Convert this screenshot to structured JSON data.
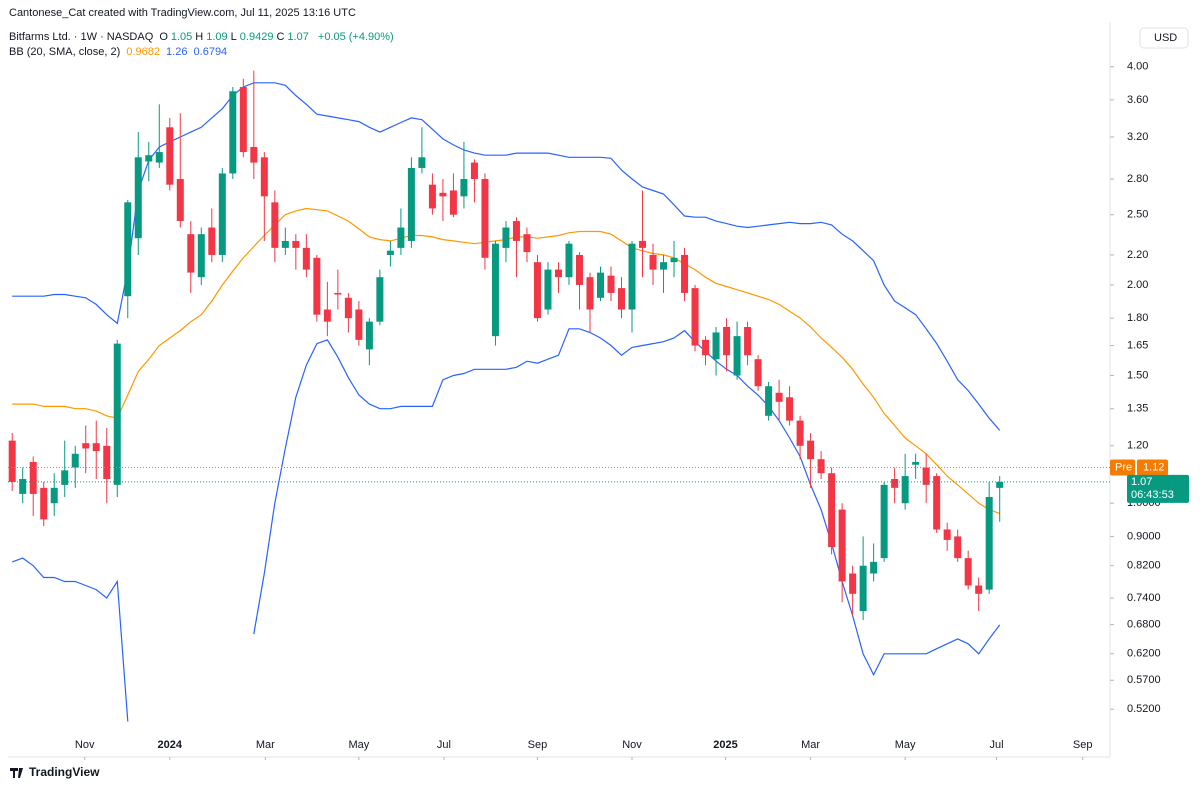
{
  "attribution": "Cantonese_Cat created with TradingView.com, Jul 11, 2025 13:16 UTC",
  "brand": "TradingView",
  "currency": "USD",
  "chart_data": {
    "type": "candlestick",
    "title": "Bitfarms Ltd. · 1W · NASDAQ",
    "ohlc_labels": [
      "O",
      "H",
      "L",
      "C"
    ],
    "change": "+0.05 (+4.90%)",
    "indicator": "BB (20, SMA, close, 2)",
    "log_scale": true,
    "grid": false,
    "up_color": "#089981",
    "down_color": "#f23645",
    "open": [
      1.22,
      1.03,
      1.14,
      1.05,
      1.0,
      1.06,
      1.12,
      1.21,
      1.21,
      1.2,
      1.06,
      1.93,
      2.32,
      2.96,
      2.95,
      3.3,
      2.8,
      2.35,
      2.05,
      2.4,
      2.2,
      2.85,
      3.75,
      3.1,
      3.0,
      2.6,
      2.25,
      2.3,
      2.25,
      2.18,
      1.85,
      1.95,
      1.92,
      1.85,
      1.63,
      1.78,
      2.2,
      2.25,
      2.3,
      2.9,
      2.75,
      2.68,
      2.7,
      2.65,
      2.95,
      2.8,
      1.7,
      2.25,
      2.45,
      2.35,
      2.15,
      1.85,
      2.1,
      2.05,
      2.2,
      2.05,
      1.92,
      2.06,
      1.98,
      1.85,
      2.3,
      2.2,
      2.1,
      2.15,
      2.2,
      1.98,
      1.68,
      1.58,
      1.75,
      1.5,
      1.75,
      1.58,
      1.32,
      1.42,
      1.4,
      1.3,
      1.22,
      1.15,
      1.1,
      0.98,
      0.8,
      0.71,
      0.8,
      0.84,
      1.08,
      1.0,
      1.13,
      1.12,
      1.09,
      0.92,
      0.9,
      0.84,
      0.77,
      0.76,
      1.05
    ],
    "high": [
      1.25,
      1.12,
      1.16,
      1.07,
      1.1,
      1.22,
      1.2,
      1.28,
      1.3,
      1.27,
      1.68,
      2.62,
      3.25,
      3.15,
      3.55,
      3.4,
      3.45,
      2.45,
      2.4,
      2.55,
      2.9,
      3.75,
      3.85,
      3.95,
      3.05,
      2.7,
      2.4,
      2.35,
      2.35,
      2.2,
      2.02,
      2.1,
      1.95,
      1.9,
      1.8,
      2.1,
      2.3,
      2.55,
      3.0,
      3.3,
      2.85,
      2.8,
      2.85,
      3.15,
      2.98,
      2.85,
      2.3,
      2.45,
      2.48,
      2.4,
      2.2,
      2.15,
      2.15,
      2.3,
      2.22,
      2.08,
      2.12,
      2.12,
      2.05,
      2.3,
      2.7,
      2.28,
      2.2,
      2.3,
      2.25,
      2.0,
      1.7,
      1.75,
      1.8,
      1.78,
      1.78,
      1.6,
      1.47,
      1.48,
      1.45,
      1.32,
      1.25,
      1.18,
      1.12,
      1.0,
      0.82,
      0.9,
      0.88,
      1.07,
      1.12,
      1.17,
      1.17,
      1.17,
      1.1,
      0.94,
      0.92,
      0.86,
      0.79,
      1.07,
      1.09
    ],
    "low": [
      1.04,
      1.0,
      0.96,
      0.93,
      0.96,
      1.02,
      1.05,
      1.1,
      1.08,
      1.0,
      1.02,
      1.8,
      2.2,
      2.78,
      2.9,
      2.7,
      2.4,
      1.95,
      2.0,
      2.15,
      2.15,
      2.8,
      3.0,
      2.8,
      2.3,
      2.15,
      2.2,
      2.1,
      2.05,
      1.78,
      1.7,
      1.85,
      1.72,
      1.65,
      1.55,
      1.76,
      2.12,
      2.2,
      2.25,
      2.85,
      2.5,
      2.45,
      2.48,
      2.55,
      2.6,
      2.1,
      1.65,
      2.15,
      2.05,
      2.15,
      1.78,
      1.82,
      1.95,
      2.0,
      1.85,
      1.72,
      1.9,
      1.9,
      1.8,
      1.72,
      2.05,
      2.0,
      1.95,
      2.05,
      1.9,
      1.62,
      1.55,
      1.5,
      1.52,
      1.48,
      1.55,
      1.43,
      1.3,
      1.3,
      1.28,
      1.15,
      1.05,
      1.08,
      0.85,
      0.73,
      0.7,
      0.69,
      0.78,
      0.83,
      1.0,
      0.98,
      1.08,
      1.0,
      0.91,
      0.86,
      0.83,
      0.76,
      0.71,
      0.75,
      0.9429
    ],
    "close": [
      1.07,
      1.08,
      1.03,
      0.95,
      1.05,
      1.11,
      1.17,
      1.19,
      1.18,
      1.08,
      1.66,
      2.6,
      3.0,
      3.02,
      3.05,
      2.75,
      2.45,
      2.08,
      2.35,
      2.2,
      2.85,
      3.7,
      3.05,
      2.95,
      2.65,
      2.25,
      2.3,
      2.25,
      2.1,
      1.82,
      1.78,
      1.94,
      1.8,
      1.68,
      1.78,
      2.05,
      2.23,
      2.4,
      2.9,
      3.0,
      2.55,
      2.65,
      2.5,
      2.8,
      2.8,
      2.18,
      2.28,
      2.4,
      2.3,
      2.22,
      1.8,
      2.1,
      2.05,
      2.28,
      2.0,
      1.85,
      2.08,
      1.95,
      1.85,
      2.28,
      2.25,
      2.1,
      2.15,
      2.18,
      1.95,
      1.65,
      1.6,
      1.72,
      1.6,
      1.7,
      1.6,
      1.45,
      1.45,
      1.38,
      1.3,
      1.2,
      1.15,
      1.1,
      0.87,
      0.78,
      0.75,
      0.82,
      0.83,
      1.06,
      1.05,
      1.09,
      1.14,
      1.06,
      0.92,
      0.89,
      0.84,
      0.77,
      0.75,
      1.02,
      1.07
    ],
    "series": [
      {
        "color": "#ff9800",
        "values": [
          1.37,
          1.37,
          1.37,
          1.36,
          1.36,
          1.36,
          1.35,
          1.35,
          1.34,
          1.32,
          1.31,
          1.41,
          1.52,
          1.58,
          1.65,
          1.69,
          1.73,
          1.78,
          1.82,
          1.9,
          2.0,
          2.09,
          2.18,
          2.26,
          2.34,
          2.42,
          2.5,
          2.53,
          2.55,
          2.54,
          2.53,
          2.49,
          2.45,
          2.39,
          2.33,
          2.31,
          2.3,
          2.32,
          2.34,
          2.34,
          2.33,
          2.31,
          2.3,
          2.29,
          2.28,
          2.29,
          2.3,
          2.31,
          2.33,
          2.33,
          2.32,
          2.33,
          2.34,
          2.36,
          2.37,
          2.37,
          2.37,
          2.35,
          2.3,
          2.25,
          2.23,
          2.21,
          2.2,
          2.18,
          2.14,
          2.1,
          2.05,
          2.01,
          1.99,
          1.97,
          1.95,
          1.93,
          1.91,
          1.88,
          1.84,
          1.8,
          1.75,
          1.69,
          1.64,
          1.59,
          1.53,
          1.46,
          1.4,
          1.33,
          1.28,
          1.23,
          1.2,
          1.17,
          1.13,
          1.09,
          1.06,
          1.03,
          1.0,
          0.98,
          0.9682
        ]
      },
      {
        "color": "#2962ff",
        "values": [
          1.93,
          1.93,
          1.93,
          1.93,
          1.94,
          1.94,
          1.93,
          1.92,
          1.88,
          1.82,
          1.77,
          2.1,
          2.7,
          2.97,
          3.1,
          3.15,
          3.2,
          3.25,
          3.3,
          3.4,
          3.5,
          3.65,
          3.75,
          3.8,
          3.8,
          3.8,
          3.77,
          3.65,
          3.55,
          3.44,
          3.42,
          3.4,
          3.38,
          3.36,
          3.3,
          3.25,
          3.3,
          3.35,
          3.4,
          3.38,
          3.28,
          3.18,
          3.12,
          3.07,
          3.04,
          3.02,
          3.02,
          3.02,
          3.04,
          3.04,
          3.04,
          3.04,
          3.02,
          3.0,
          3.0,
          3.0,
          3.0,
          2.99,
          2.88,
          2.8,
          2.73,
          2.7,
          2.67,
          2.58,
          2.49,
          2.48,
          2.48,
          2.45,
          2.43,
          2.41,
          2.4,
          2.41,
          2.42,
          2.43,
          2.44,
          2.43,
          2.43,
          2.44,
          2.42,
          2.35,
          2.3,
          2.23,
          2.16,
          2.0,
          1.9,
          1.86,
          1.82,
          1.74,
          1.66,
          1.57,
          1.48,
          1.43,
          1.37,
          1.31,
          1.26
        ]
      },
      {
        "color": "#2962ff",
        "values": [
          0.83,
          0.84,
          0.82,
          0.79,
          0.79,
          0.78,
          0.78,
          0.77,
          0.76,
          0.74,
          0.78,
          0.5,
          null,
          null,
          null,
          null,
          null,
          null,
          null,
          null,
          null,
          null,
          null,
          0.66,
          0.8,
          1.0,
          1.19,
          1.4,
          1.55,
          1.66,
          1.68,
          1.59,
          1.49,
          1.41,
          1.37,
          1.35,
          1.35,
          1.36,
          1.36,
          1.36,
          1.36,
          1.48,
          1.5,
          1.51,
          1.53,
          1.53,
          1.53,
          1.53,
          1.54,
          1.57,
          1.56,
          1.58,
          1.6,
          1.74,
          1.74,
          1.72,
          1.69,
          1.65,
          1.6,
          1.64,
          1.65,
          1.66,
          1.67,
          1.69,
          1.73,
          1.67,
          1.62,
          1.57,
          1.53,
          1.5,
          1.45,
          1.41,
          1.36,
          1.3,
          1.23,
          1.16,
          1.06,
          0.98,
          0.88,
          0.78,
          0.7,
          0.62,
          0.58,
          0.62,
          0.62,
          0.62,
          0.62,
          0.62,
          0.63,
          0.64,
          0.65,
          0.64,
          0.62,
          0.65,
          0.6794
        ]
      }
    ],
    "price_lines": [
      {
        "label": "Pre",
        "value": 1.12,
        "color": "#f57c00"
      },
      {
        "value": 1.07,
        "color": "#089981",
        "countdown": "06:43:53"
      }
    ],
    "xlim": [
      -0.4,
      104.5
    ],
    "xticks": [
      {
        "value": 6.9,
        "label": "Nov"
      },
      {
        "value": 15.0,
        "label": "2024"
      },
      {
        "value": 24.1,
        "label": "Mar"
      },
      {
        "value": 33.0,
        "label": "May"
      },
      {
        "value": 41.1,
        "label": "Jul"
      },
      {
        "value": 50.0,
        "label": "Sep"
      },
      {
        "value": 59.0,
        "label": "Nov"
      },
      {
        "value": 67.9,
        "label": "2025"
      },
      {
        "value": 76.0,
        "label": "Mar"
      },
      {
        "value": 85.0,
        "label": "May"
      },
      {
        "value": 93.7,
        "label": "Jul"
      },
      {
        "value": 101.9,
        "label": "Sep"
      }
    ],
    "ylim": [
      0.479,
      4.61
    ],
    "yticks": [
      {
        "value": 4,
        "label": "4.00"
      },
      {
        "value": 3.6,
        "label": "3.60"
      },
      {
        "value": 3.2,
        "label": "3.20"
      },
      {
        "value": 2.8,
        "label": "2.80"
      },
      {
        "value": 2.5,
        "label": "2.50"
      },
      {
        "value": 2.2,
        "label": "2.20"
      },
      {
        "value": 2,
        "label": "2.00"
      },
      {
        "value": 1.8,
        "label": "1.80"
      },
      {
        "value": 1.65,
        "label": "1.65"
      },
      {
        "value": 1.5,
        "label": "1.50"
      },
      {
        "value": 1.35,
        "label": "1.35"
      },
      {
        "value": 1.2,
        "label": "1.20"
      },
      {
        "value": 1,
        "label": "1.0000"
      },
      {
        "value": 0.9,
        "label": "0.9000"
      },
      {
        "value": 0.82,
        "label": "0.8200"
      },
      {
        "value": 0.74,
        "label": "0.7400"
      },
      {
        "value": 0.68,
        "label": "0.6800"
      },
      {
        "value": 0.62,
        "label": "0.6200"
      },
      {
        "value": 0.57,
        "label": "0.5700"
      },
      {
        "value": 0.52,
        "label": "0.5200"
      }
    ]
  }
}
